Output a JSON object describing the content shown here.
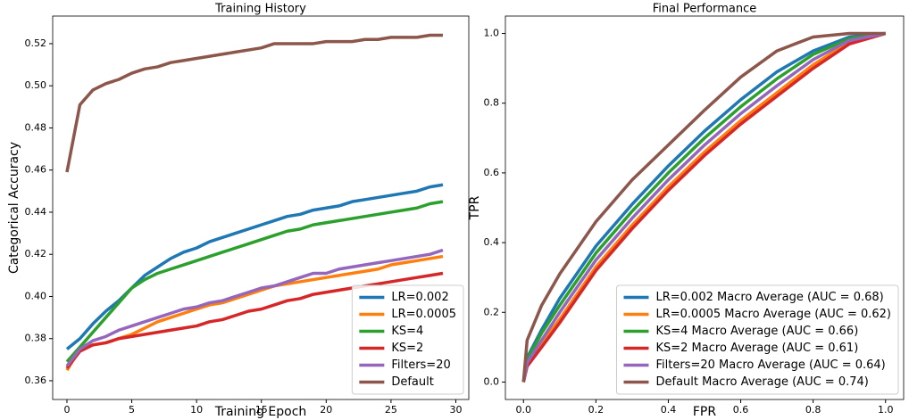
{
  "chart_data": [
    {
      "type": "line",
      "title": "Training History",
      "x_label": "Training Epoch",
      "y_label": "Categorical Accuracy",
      "x": [
        0,
        1,
        2,
        3,
        4,
        5,
        6,
        7,
        8,
        9,
        10,
        11,
        12,
        13,
        14,
        15,
        16,
        17,
        18,
        19,
        20,
        21,
        22,
        23,
        24,
        25,
        26,
        27,
        28,
        29
      ],
      "xlim": [
        -1.1,
        31.0
      ],
      "xticks": [
        0,
        5,
        10,
        15,
        20,
        25,
        30
      ],
      "ylim": [
        0.3511,
        0.5331
      ],
      "yticks": [
        0.36,
        0.38,
        {
          "value": 0.4,
          "label": "0.40"
        },
        0.42,
        0.44,
        0.46,
        0.48,
        {
          "value": 0.5,
          "label": "0.50"
        },
        0.52
      ],
      "legend": "lower right",
      "grid": false,
      "series": [
        {
          "name": "LR=0.002",
          "color": "#1f77b4",
          "values": [
            0.375,
            0.38,
            0.387,
            0.393,
            0.398,
            0.404,
            0.41,
            0.414,
            0.418,
            0.421,
            0.423,
            0.426,
            0.428,
            0.43,
            0.432,
            0.434,
            0.436,
            0.438,
            0.439,
            0.441,
            0.442,
            0.443,
            0.445,
            0.446,
            0.447,
            0.448,
            0.449,
            0.45,
            0.452,
            0.453
          ]
        },
        {
          "name": "LR=0.0005",
          "color": "#ff7f0e",
          "values": [
            0.365,
            0.375,
            0.377,
            0.378,
            0.38,
            0.382,
            0.385,
            0.388,
            0.39,
            0.392,
            0.394,
            0.396,
            0.397,
            0.399,
            0.401,
            0.403,
            0.405,
            0.406,
            0.407,
            0.408,
            0.409,
            0.41,
            0.411,
            0.412,
            0.413,
            0.415,
            0.416,
            0.417,
            0.418,
            0.419
          ]
        },
        {
          "name": "KS=4",
          "color": "#2ca02c",
          "values": [
            0.369,
            0.376,
            0.383,
            0.39,
            0.397,
            0.404,
            0.408,
            0.411,
            0.413,
            0.415,
            0.417,
            0.419,
            0.421,
            0.423,
            0.425,
            0.427,
            0.429,
            0.431,
            0.432,
            0.434,
            0.435,
            0.436,
            0.437,
            0.438,
            0.439,
            0.44,
            0.441,
            0.442,
            0.444,
            0.445
          ]
        },
        {
          "name": "KS=2",
          "color": "#d62728",
          "values": [
            0.366,
            0.374,
            0.377,
            0.378,
            0.38,
            0.381,
            0.382,
            0.383,
            0.384,
            0.385,
            0.386,
            0.388,
            0.389,
            0.391,
            0.393,
            0.394,
            0.396,
            0.398,
            0.399,
            0.401,
            0.402,
            0.403,
            0.404,
            0.405,
            0.406,
            0.407,
            0.408,
            0.409,
            0.41,
            0.411
          ]
        },
        {
          "name": "Filters=20",
          "color": "#9467bd",
          "values": [
            0.367,
            0.375,
            0.379,
            0.381,
            0.384,
            0.386,
            0.388,
            0.39,
            0.392,
            0.394,
            0.395,
            0.397,
            0.398,
            0.4,
            0.402,
            0.404,
            0.405,
            0.407,
            0.409,
            0.411,
            0.411,
            0.413,
            0.414,
            0.415,
            0.416,
            0.417,
            0.418,
            0.419,
            0.42,
            0.422
          ]
        },
        {
          "name": "Default",
          "color": "#8c564b",
          "values": [
            0.459,
            0.491,
            0.498,
            0.501,
            0.503,
            0.506,
            0.508,
            0.509,
            0.511,
            0.512,
            0.513,
            0.514,
            0.515,
            0.516,
            0.517,
            0.518,
            0.52,
            0.52,
            0.52,
            0.52,
            0.521,
            0.521,
            0.521,
            0.522,
            0.522,
            0.523,
            0.523,
            0.523,
            0.524,
            0.524
          ]
        }
      ]
    },
    {
      "type": "line",
      "title": "Final Performance",
      "x_label": "FPR",
      "y_label": "TPR",
      "x": [
        0,
        0.01,
        0.05,
        0.1,
        0.2,
        0.3,
        0.4,
        0.5,
        0.6,
        0.7,
        0.8,
        0.9,
        1.0
      ],
      "xlim": [
        -0.05,
        1.05
      ],
      "xticks": [
        {
          "value": 0,
          "label": "0.0"
        },
        0.2,
        0.4,
        0.6,
        0.8,
        {
          "value": 1,
          "label": "1.0"
        }
      ],
      "ylim": [
        -0.05,
        1.05
      ],
      "yticks": [
        {
          "value": 0,
          "label": "0.0"
        },
        0.2,
        0.4,
        0.6,
        0.8,
        {
          "value": 1,
          "label": "1.0"
        }
      ],
      "legend": "lower right",
      "grid": false,
      "series": [
        {
          "name": "LR=0.002 Macro Average (AUC = 0.68)",
          "color": "#1f77b4",
          "values": [
            0,
            0.07,
            0.15,
            0.24,
            0.39,
            0.51,
            0.62,
            0.72,
            0.81,
            0.89,
            0.95,
            0.99,
            1.0
          ]
        },
        {
          "name": "LR=0.0005 Macro Average (AUC = 0.62)",
          "color": "#ff7f0e",
          "values": [
            0,
            0.05,
            0.11,
            0.18,
            0.33,
            0.45,
            0.56,
            0.66,
            0.75,
            0.83,
            0.91,
            0.975,
            1.0
          ]
        },
        {
          "name": "KS=4 Macro Average (AUC = 0.66)",
          "color": "#2ca02c",
          "values": [
            0,
            0.065,
            0.14,
            0.22,
            0.37,
            0.49,
            0.6,
            0.7,
            0.79,
            0.87,
            0.94,
            0.985,
            1.0
          ]
        },
        {
          "name": "KS=2 Macro Average (AUC = 0.61)",
          "color": "#d62728",
          "values": [
            0,
            0.045,
            0.1,
            0.17,
            0.32,
            0.44,
            0.55,
            0.65,
            0.74,
            0.82,
            0.9,
            0.97,
            1.0
          ]
        },
        {
          "name": "Filters=20 Macro Average (AUC = 0.64)",
          "color": "#9467bd",
          "values": [
            0,
            0.055,
            0.12,
            0.2,
            0.35,
            0.47,
            0.58,
            0.68,
            0.77,
            0.85,
            0.925,
            0.98,
            1.0
          ]
        },
        {
          "name": "Default Macro Average (AUC = 0.74)",
          "color": "#8c564b",
          "values": [
            0,
            0.12,
            0.22,
            0.31,
            0.46,
            0.58,
            0.68,
            0.78,
            0.875,
            0.95,
            0.99,
            1.0,
            1.0
          ]
        }
      ]
    }
  ]
}
